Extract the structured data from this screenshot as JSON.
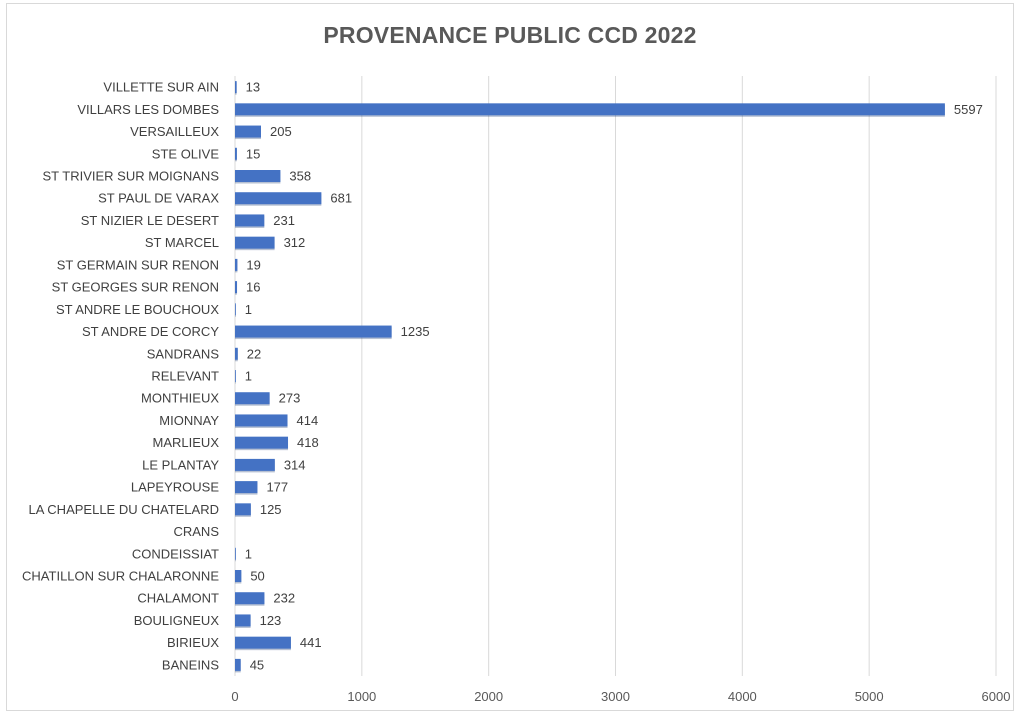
{
  "chart_data": {
    "type": "bar",
    "orientation": "horizontal",
    "title": "PROVENANCE PUBLIC CCD 2022",
    "xlabel": "",
    "ylabel": "",
    "xlim": [
      0,
      6000
    ],
    "x_ticks": [
      "0",
      "1000",
      "2000",
      "3000",
      "4000",
      "5000",
      "6000"
    ],
    "grid": "vertical",
    "legend": "none",
    "bar_color": "#4472c4",
    "categories": [
      "VILLETTE SUR AIN",
      "VILLARS LES DOMBES",
      "VERSAILLEUX",
      "STE OLIVE",
      "ST TRIVIER SUR MOIGNANS",
      "ST PAUL DE VARAX",
      "ST NIZIER LE DESERT",
      "ST MARCEL",
      "ST GERMAIN SUR RENON",
      "ST GEORGES SUR RENON",
      "ST ANDRE LE BOUCHOUX",
      "ST ANDRE DE CORCY",
      "SANDRANS",
      "RELEVANT",
      "MONTHIEUX",
      "MIONNAY",
      "MARLIEUX",
      "LE PLANTAY",
      "LAPEYROUSE",
      "LA CHAPELLE DU CHATELARD",
      "CRANS",
      "CONDEISSIAT",
      "CHATILLON SUR CHALARONNE",
      "CHALAMONT",
      "BOULIGNEUX",
      "BIRIEUX",
      "BANEINS"
    ],
    "values": [
      13,
      5597,
      205,
      15,
      358,
      681,
      231,
      312,
      19,
      16,
      1,
      1235,
      22,
      1,
      273,
      414,
      418,
      314,
      177,
      125,
      null,
      1,
      50,
      232,
      123,
      441,
      45
    ]
  }
}
